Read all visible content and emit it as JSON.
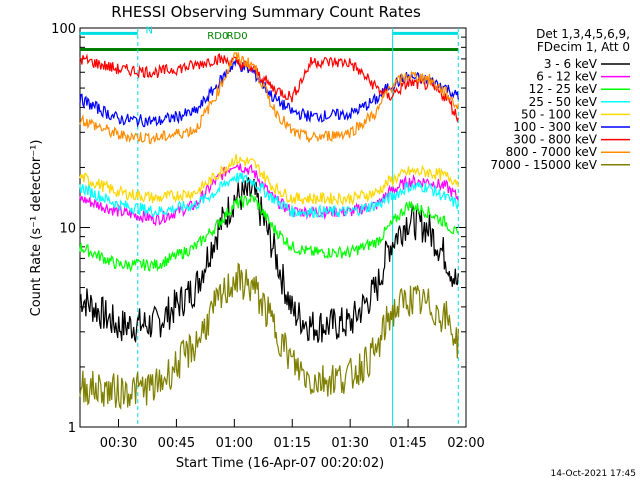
{
  "chart_data": {
    "type": "line",
    "title": "RHESSI Observing Summary Count Rates",
    "xlabel": "Start Time (16-Apr-07 00:20:02)",
    "ylabel": "Count Rate (s⁻¹ detector⁻¹)",
    "y_scale": "log",
    "ylim": [
      1,
      100
    ],
    "xlim": [
      "00:20",
      "02:00"
    ],
    "x_ticks": [
      "00:30",
      "00:45",
      "01:00",
      "01:15",
      "01:30",
      "01:45",
      "02:00"
    ],
    "y_ticks": [
      "1",
      "10",
      "100"
    ],
    "timestamp": "14-Oct-2021 17:45",
    "legend_header": [
      "Det 1,3,4,5,6,9,",
      "FDecim 1, Att 0"
    ],
    "annotations": [
      {
        "text": "N",
        "x": "00:37",
        "y": 94,
        "color": "#00e0e0"
      },
      {
        "text": "RD0",
        "x": "00:53",
        "y": 88,
        "color": "#008000"
      },
      {
        "text": "RD0",
        "x": "00:58",
        "y": 88,
        "color": "#008000"
      }
    ],
    "x": [
      "00:20",
      "00:30",
      "00:40",
      "00:50",
      "00:55",
      "01:00",
      "01:05",
      "01:10",
      "01:15",
      "01:20",
      "01:30",
      "01:37",
      "01:40",
      "01:45",
      "01:50",
      "01:55",
      "01:58"
    ],
    "series": [
      {
        "name": "3 - 6 keV",
        "color": "#000000",
        "values": [
          4.5,
          3.2,
          3.3,
          5,
          9,
          14,
          15,
          8,
          3.8,
          3.2,
          3.3,
          5,
          8,
          11,
          10,
          7,
          5
        ]
      },
      {
        "name": "6 - 12 keV",
        "color": "#ff00ff",
        "values": [
          14,
          12,
          11,
          13,
          17,
          21,
          19,
          14,
          12,
          12,
          12,
          13,
          15,
          17,
          17,
          16,
          14
        ]
      },
      {
        "name": "12 - 25 keV",
        "color": "#00ff00",
        "values": [
          8,
          6.5,
          6.5,
          8,
          10,
          13,
          14,
          10,
          8,
          7.5,
          7.5,
          8.5,
          10,
          13,
          12,
          10.5,
          9
        ]
      },
      {
        "name": "25 - 50 keV",
        "color": "#00ffff",
        "values": [
          16,
          13,
          12,
          13,
          15,
          18,
          17,
          14,
          12,
          12,
          12,
          13,
          14,
          16,
          16,
          14,
          13
        ]
      },
      {
        "name": "50 - 100 keV",
        "color": "#ffd700",
        "values": [
          18,
          15,
          14,
          15,
          18,
          22,
          21,
          16,
          14,
          14,
          14,
          15,
          17,
          19,
          19,
          18,
          17
        ]
      },
      {
        "name": "100 - 300 keV",
        "color": "#0000ff",
        "values": [
          44,
          35,
          34,
          38,
          50,
          67,
          60,
          45,
          38,
          36,
          37,
          44,
          51,
          57,
          55,
          50,
          45
        ]
      },
      {
        "name": "300 - 800 keV",
        "color": "#ff0000",
        "values": [
          70,
          62,
          60,
          65,
          70,
          68,
          62,
          50,
          45,
          68,
          67,
          50,
          45,
          53,
          52,
          45,
          35
        ]
      },
      {
        "name": "800 - 7000 keV",
        "color": "#ff8c00",
        "values": [
          35,
          29,
          28,
          31,
          45,
          72,
          65,
          40,
          30,
          28,
          30,
          38,
          50,
          58,
          56,
          47,
          40
        ]
      },
      {
        "name": "7000 - 15000 keV",
        "color": "#808000",
        "values": [
          1.6,
          1.5,
          1.6,
          2.6,
          4,
          5.5,
          5,
          3.3,
          2.1,
          1.7,
          1.8,
          2.4,
          3.6,
          4.4,
          4.1,
          3.5,
          2.6
        ]
      }
    ],
    "flag_bars": [
      {
        "label": "N",
        "color": "#00e0e0",
        "segments": [
          [
            "00:20",
            "00:35"
          ],
          [
            "01:41",
            "01:58"
          ]
        ],
        "y": 94
      },
      {
        "label": "RD0",
        "color": "#008000",
        "segments": [
          [
            "00:20",
            "00:52"
          ],
          [
            "00:52",
            "01:38"
          ],
          [
            "01:38",
            "01:58"
          ]
        ],
        "y": 78
      }
    ]
  }
}
